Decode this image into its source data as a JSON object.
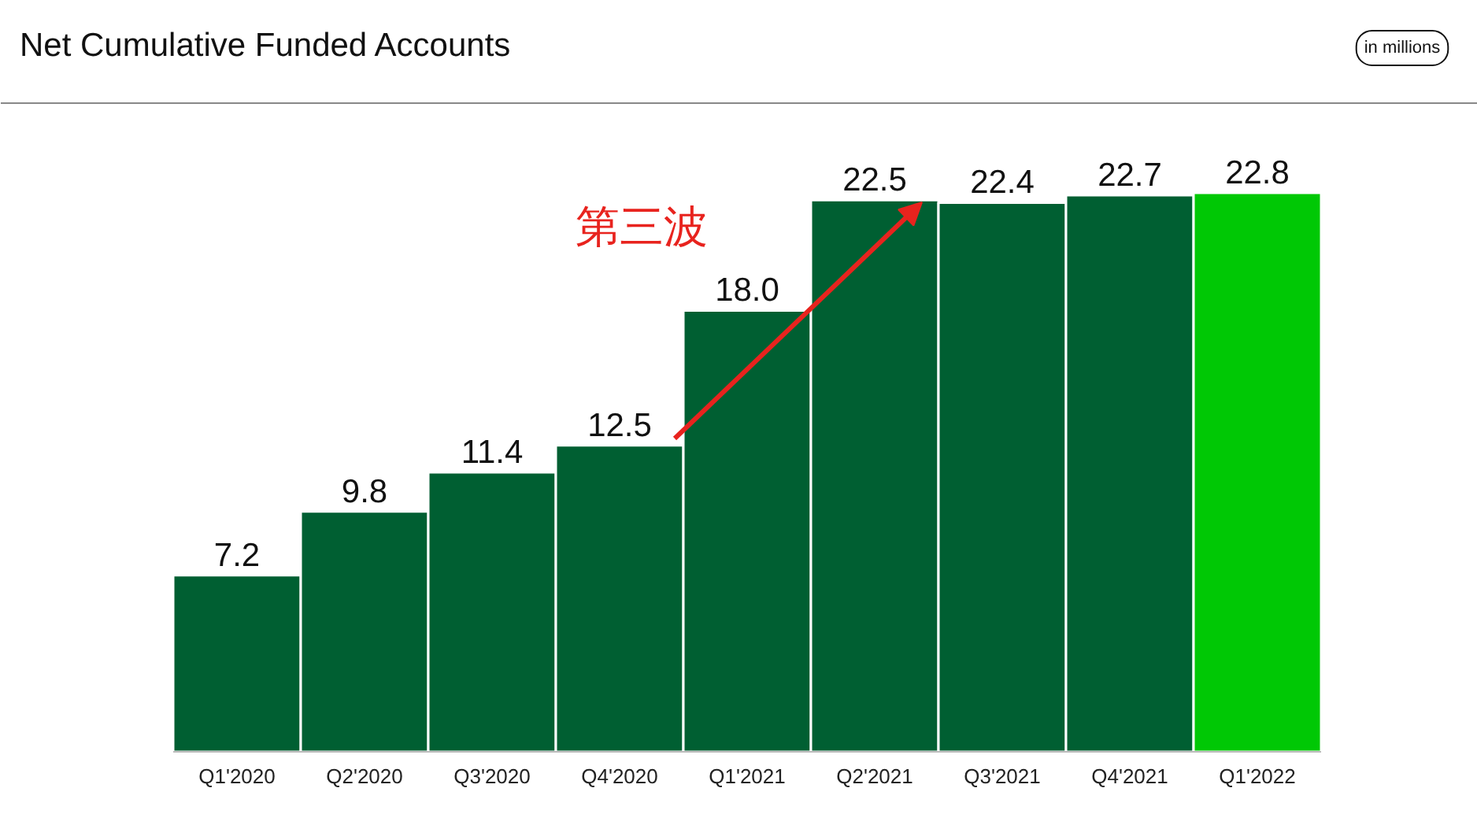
{
  "chart_data": {
    "type": "bar",
    "title": "Net Cumulative Funded Accounts",
    "annotations": [
      "in millions",
      "第三波"
    ],
    "categories": [
      "Q1'2020",
      "Q2'2020",
      "Q3'2020",
      "Q4'2020",
      "Q1'2021",
      "Q2'2021",
      "Q3'2021",
      "Q4'2021",
      "Q1'2022"
    ],
    "values": [
      7.2,
      9.8,
      11.4,
      12.5,
      18.0,
      22.5,
      22.4,
      22.7,
      22.8
    ],
    "colors": [
      "#005f32",
      "#005f32",
      "#005f32",
      "#005f32",
      "#005f32",
      "#005f32",
      "#005f32",
      "#005f32",
      "#00c805"
    ],
    "value_labels": [
      "7.2",
      "9.8",
      "11.4",
      "12.5",
      "18.0",
      "22.5",
      "22.4",
      "22.7",
      "22.8"
    ]
  }
}
